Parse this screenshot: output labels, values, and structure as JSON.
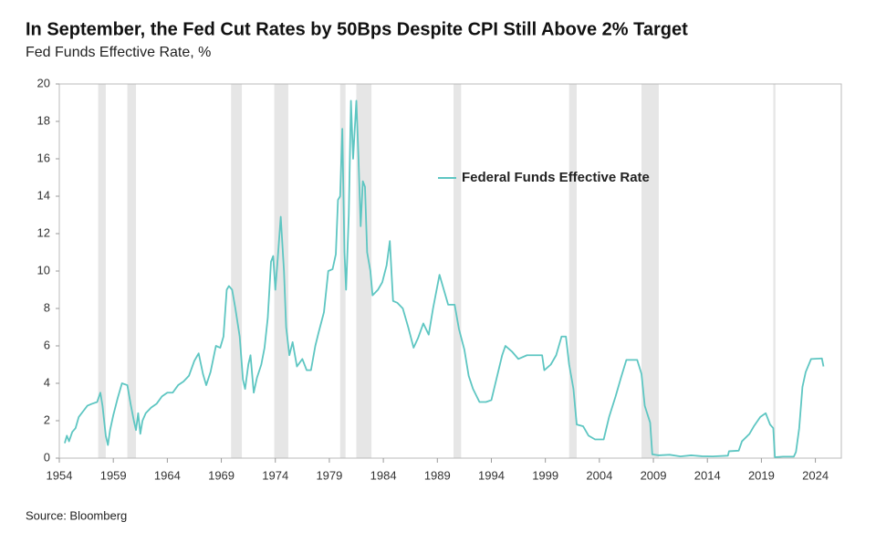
{
  "chart_data": {
    "type": "line",
    "title": "In September, the Fed Cut Rates by 50Bps Despite CPI Still Above 2% Target",
    "subtitle": "Fed Funds Effective Rate, %",
    "source": "Source: Bloomberg",
    "x": [
      1954.5,
      1954.7,
      1954.9,
      1955.2,
      1955.5,
      1955.8,
      1956.2,
      1956.6,
      1957.0,
      1957.5,
      1957.8,
      1958.0,
      1958.3,
      1958.5,
      1958.7,
      1959.0,
      1959.4,
      1959.8,
      1960.3,
      1960.6,
      1960.9,
      1961.1,
      1961.3,
      1961.5,
      1961.7,
      1962.0,
      1962.5,
      1963.0,
      1963.5,
      1964.0,
      1964.5,
      1965.0,
      1965.5,
      1966.0,
      1966.5,
      1966.9,
      1967.3,
      1967.6,
      1968.0,
      1968.5,
      1968.9,
      1969.2,
      1969.5,
      1969.7,
      1970.0,
      1970.3,
      1970.7,
      1971.0,
      1971.2,
      1971.5,
      1971.7,
      1972.0,
      1972.3,
      1972.7,
      1973.0,
      1973.3,
      1973.6,
      1973.8,
      1974.0,
      1974.2,
      1974.5,
      1974.8,
      1975.0,
      1975.3,
      1975.6,
      1976.0,
      1976.5,
      1976.9,
      1977.3,
      1977.7,
      1978.0,
      1978.5,
      1978.9,
      1979.3,
      1979.6,
      1979.8,
      1980.0,
      1980.2,
      1980.4,
      1980.55,
      1980.8,
      1981.0,
      1981.2,
      1981.5,
      1981.7,
      1981.9,
      1982.1,
      1982.3,
      1982.5,
      1982.8,
      1983.0,
      1983.5,
      1983.9,
      1984.3,
      1984.6,
      1984.9,
      1985.3,
      1985.8,
      1986.3,
      1986.8,
      1987.2,
      1987.7,
      1988.2,
      1988.6,
      1989.2,
      1989.6,
      1990.0,
      1990.6,
      1991.0,
      1991.5,
      1991.9,
      1992.3,
      1992.9,
      1993.5,
      1994.0,
      1994.5,
      1995.0,
      1995.3,
      1995.9,
      1996.5,
      1997.3,
      1998.0,
      1998.7,
      1998.9,
      1999.5,
      2000.0,
      2000.5,
      2000.9,
      2001.2,
      2001.6,
      2001.9,
      2002.5,
      2003.0,
      2003.6,
      2004.4,
      2004.9,
      2005.5,
      2006.0,
      2006.5,
      2007.5,
      2007.9,
      2008.2,
      2008.7,
      2008.9,
      2009.5,
      2010.5,
      2011.5,
      2012.5,
      2013.5,
      2014.5,
      2015.9,
      2016.0,
      2016.9,
      2017.2,
      2017.9,
      2018.3,
      2018.9,
      2019.4,
      2019.8,
      2020.1,
      2020.25,
      2021.0,
      2022.0,
      2022.2,
      2022.5,
      2022.8,
      2023.1,
      2023.6,
      2024.6,
      2024.75
    ],
    "series": [
      {
        "name": "Federal Funds Effective Rate",
        "color": "#5ec6c2",
        "values": [
          0.8,
          1.2,
          0.9,
          1.4,
          1.6,
          2.2,
          2.5,
          2.8,
          2.9,
          3.0,
          3.5,
          2.8,
          1.2,
          0.7,
          1.5,
          2.3,
          3.2,
          4.0,
          3.9,
          2.9,
          2.0,
          1.5,
          2.4,
          1.3,
          2.0,
          2.4,
          2.7,
          2.9,
          3.3,
          3.5,
          3.5,
          3.9,
          4.1,
          4.4,
          5.2,
          5.6,
          4.5,
          3.9,
          4.6,
          6.0,
          5.9,
          6.5,
          9.0,
          9.2,
          9.0,
          8.0,
          6.5,
          4.2,
          3.7,
          5.0,
          5.5,
          3.5,
          4.3,
          5.0,
          5.9,
          7.5,
          10.5,
          10.8,
          9.0,
          10.5,
          12.9,
          10.0,
          7.0,
          5.5,
          6.2,
          4.9,
          5.3,
          4.7,
          4.7,
          6.0,
          6.7,
          7.8,
          10.0,
          10.1,
          10.9,
          13.8,
          14.0,
          17.6,
          11.0,
          9.0,
          13.0,
          19.1,
          16.0,
          19.1,
          16.0,
          12.4,
          14.8,
          14.5,
          11.0,
          10.0,
          8.7,
          9.0,
          9.4,
          10.3,
          11.6,
          8.4,
          8.3,
          8.0,
          7.0,
          5.9,
          6.4,
          7.2,
          6.6,
          8.0,
          9.8,
          9.0,
          8.2,
          8.2,
          6.9,
          5.8,
          4.4,
          3.7,
          3.0,
          3.0,
          3.1,
          4.3,
          5.5,
          6.0,
          5.7,
          5.3,
          5.5,
          5.5,
          5.5,
          4.7,
          5.0,
          5.5,
          6.5,
          6.5,
          5.0,
          3.7,
          1.8,
          1.7,
          1.2,
          1.0,
          1.0,
          2.2,
          3.3,
          4.3,
          5.25,
          5.25,
          4.5,
          2.8,
          1.9,
          0.2,
          0.15,
          0.18,
          0.09,
          0.15,
          0.1,
          0.09,
          0.13,
          0.37,
          0.4,
          0.9,
          1.3,
          1.7,
          2.2,
          2.4,
          1.8,
          1.6,
          0.05,
          0.08,
          0.08,
          0.33,
          1.6,
          3.8,
          4.6,
          5.3,
          5.33,
          4.9
        ]
      }
    ],
    "shaded_regions": [
      [
        1957.6,
        1958.3
      ],
      [
        1960.3,
        1961.1
      ],
      [
        1969.9,
        1970.9
      ],
      [
        1973.9,
        1975.2
      ],
      [
        1980.0,
        1980.5
      ],
      [
        1981.5,
        1982.9
      ],
      [
        1990.5,
        1991.2
      ],
      [
        2001.2,
        2001.9
      ],
      [
        2007.9,
        2009.5
      ],
      [
        2020.1,
        2020.3
      ]
    ],
    "shaded_color": "#e6e6e6",
    "xlim": [
      1954,
      2026.4
    ],
    "xticks": [
      1954,
      1959,
      1964,
      1969,
      1974,
      1979,
      1984,
      1989,
      1994,
      1999,
      2004,
      2009,
      2014,
      2019,
      2024
    ],
    "ylim": [
      0,
      20
    ],
    "yticks": [
      0,
      2,
      4,
      6,
      8,
      10,
      12,
      14,
      16,
      18,
      20
    ]
  }
}
